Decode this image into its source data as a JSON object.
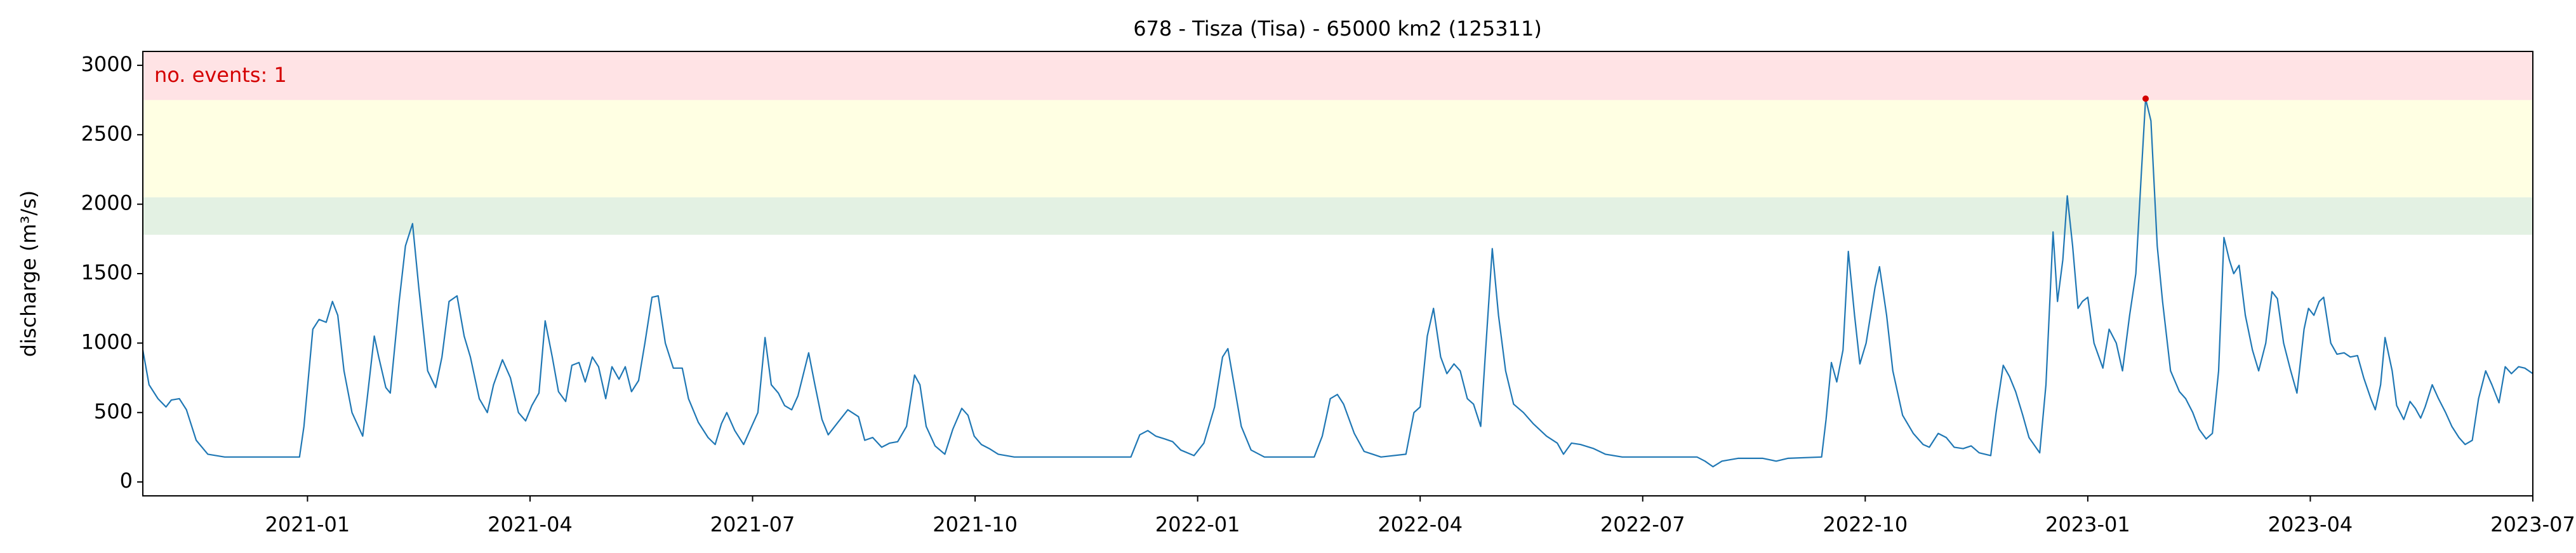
{
  "chart_data": {
    "type": "line",
    "title": "678 - Tisza (Tisa) - 65000 km2 (125311)",
    "y_label": "discharge (m³/s)",
    "annotation": "no. events: 1",
    "annotation_color": "#d40000",
    "color": "#1f77b4",
    "xlim": [
      2020.815,
      2023.5
    ],
    "ylim": [
      -100,
      3100
    ],
    "xticks": [
      {
        "value": 2021.0,
        "label": "2021-01"
      },
      {
        "value": 2021.25,
        "label": "2021-04"
      },
      {
        "value": 2021.5,
        "label": "2021-07"
      },
      {
        "value": 2021.75,
        "label": "2021-10"
      },
      {
        "value": 2022.0,
        "label": "2022-01"
      },
      {
        "value": 2022.25,
        "label": "2022-04"
      },
      {
        "value": 2022.5,
        "label": "2022-07"
      },
      {
        "value": 2022.75,
        "label": "2022-10"
      },
      {
        "value": 2023.0,
        "label": "2023-01"
      },
      {
        "value": 2023.25,
        "label": "2023-04"
      },
      {
        "value": 2023.5,
        "label": "2023-07"
      }
    ],
    "yticks": [
      0,
      500,
      1000,
      1500,
      2000,
      2500,
      3000
    ],
    "bands": [
      {
        "from": 1780,
        "to": 2050,
        "color": "#e3f1e3"
      },
      {
        "from": 2050,
        "to": 2750,
        "color": "#ffffe3"
      },
      {
        "from": 2750,
        "color": "#ffe3e5"
      }
    ],
    "events": {
      "x": [
        2023.065
      ],
      "values": [
        2760
      ],
      "color": "#d40000"
    },
    "x": [
      2020.815,
      2020.822,
      2020.832,
      2020.841,
      2020.847,
      2020.856,
      2020.864,
      2020.875,
      2020.888,
      2020.907,
      2020.991,
      2020.996,
      2021.006,
      2021.013,
      2021.021,
      2021.028,
      2021.034,
      2021.041,
      2021.05,
      2021.062,
      2021.067,
      2021.075,
      2021.08,
      2021.088,
      2021.093,
      2021.103,
      2021.11,
      2021.118,
      2021.125,
      2021.135,
      2021.144,
      2021.151,
      2021.159,
      2021.168,
      2021.176,
      2021.183,
      2021.193,
      2021.202,
      2021.209,
      2021.219,
      2021.228,
      2021.237,
      2021.245,
      2021.252,
      2021.26,
      2021.267,
      2021.275,
      2021.282,
      2021.29,
      2021.297,
      2021.305,
      2021.312,
      2021.32,
      2021.327,
      2021.335,
      2021.342,
      2021.35,
      2021.357,
      2021.364,
      2021.372,
      2021.379,
      2021.387,
      2021.394,
      2021.402,
      2021.411,
      2021.421,
      2021.428,
      2021.439,
      2021.45,
      2021.458,
      2021.465,
      2021.471,
      2021.48,
      2021.49,
      2021.499,
      2021.506,
      2021.514,
      2021.521,
      2021.529,
      2021.536,
      2021.544,
      2021.551,
      2021.563,
      2021.57,
      2021.578,
      2021.585,
      2021.596,
      2021.607,
      2021.619,
      2021.626,
      2021.635,
      2021.645,
      2021.654,
      2021.663,
      2021.673,
      2021.682,
      2021.688,
      2021.695,
      2021.705,
      2021.716,
      2021.725,
      2021.735,
      2021.742,
      2021.749,
      2021.757,
      2021.766,
      2021.776,
      2021.794,
      2021.925,
      2021.935,
      2021.944,
      2021.953,
      2021.963,
      2021.972,
      2021.981,
      2021.996,
      2022.007,
      2022.019,
      2022.028,
      2022.034,
      2022.041,
      2022.049,
      2022.06,
      2022.075,
      2022.131,
      2022.14,
      2022.149,
      2022.157,
      2022.164,
      2022.176,
      2022.187,
      2022.206,
      2022.234,
      2022.243,
      2022.25,
      2022.258,
      2022.265,
      2022.273,
      2022.28,
      2022.288,
      2022.295,
      2022.303,
      2022.31,
      2022.318,
      2022.323,
      2022.331,
      2022.338,
      2022.346,
      2022.355,
      2022.366,
      2022.377,
      2022.392,
      2022.404,
      2022.411,
      2022.42,
      2022.43,
      2022.445,
      2022.458,
      2022.477,
      2022.561,
      2022.57,
      2022.579,
      2022.589,
      2022.607,
      2022.635,
      2022.65,
      2022.663,
      2022.701,
      2022.706,
      2022.712,
      2022.718,
      2022.725,
      2022.731,
      2022.738,
      2022.744,
      2022.751,
      2022.761,
      2022.766,
      2022.774,
      2022.781,
      2022.792,
      2022.804,
      2022.815,
      2022.822,
      2022.832,
      2022.841,
      2022.85,
      2022.86,
      2022.869,
      2022.878,
      2022.891,
      2022.897,
      2022.905,
      2022.912,
      2022.919,
      2022.927,
      2022.934,
      2022.946,
      2022.953,
      2022.961,
      2022.966,
      2022.972,
      2022.977,
      2022.983,
      2022.989,
      2022.994,
      2023.0,
      2023.007,
      2023.017,
      2023.024,
      2023.032,
      2023.039,
      2023.047,
      2023.054,
      2023.06,
      2023.065,
      2023.071,
      2023.078,
      2023.084,
      2023.093,
      2023.103,
      2023.11,
      2023.118,
      2023.125,
      2023.133,
      2023.14,
      2023.147,
      2023.153,
      2023.159,
      2023.164,
      2023.17,
      2023.177,
      2023.185,
      2023.192,
      2023.2,
      2023.207,
      2023.213,
      2023.22,
      2023.228,
      2023.235,
      2023.243,
      2023.248,
      2023.254,
      2023.26,
      2023.265,
      2023.273,
      2023.28,
      2023.288,
      2023.295,
      2023.303,
      2023.31,
      2023.318,
      2023.323,
      2023.329,
      2023.334,
      2023.342,
      2023.347,
      2023.355,
      2023.362,
      2023.368,
      2023.374,
      2023.379,
      2023.387,
      2023.394,
      2023.402,
      2023.409,
      2023.417,
      2023.424,
      2023.432,
      2023.439,
      2023.447,
      2023.454,
      2023.462,
      2023.469,
      2023.476,
      2023.484,
      2023.491,
      2023.5
    ],
    "values": [
      950,
      700,
      600,
      540,
      590,
      600,
      520,
      300,
      200,
      180,
      180,
      400,
      1100,
      1170,
      1150,
      1300,
      1200,
      800,
      500,
      330,
      600,
      1050,
      900,
      680,
      640,
      1300,
      1700,
      1860,
      1400,
      800,
      680,
      900,
      1300,
      1340,
      1050,
      900,
      600,
      500,
      700,
      880,
      750,
      500,
      440,
      550,
      640,
      1160,
      900,
      650,
      580,
      840,
      860,
      720,
      900,
      830,
      600,
      830,
      740,
      830,
      650,
      730,
      1000,
      1330,
      1340,
      1000,
      820,
      820,
      600,
      430,
      320,
      270,
      420,
      500,
      370,
      270,
      400,
      500,
      1040,
      700,
      640,
      550,
      520,
      620,
      930,
      700,
      450,
      340,
      430,
      520,
      470,
      300,
      320,
      250,
      280,
      290,
      400,
      770,
      700,
      400,
      260,
      200,
      380,
      530,
      480,
      330,
      270,
      240,
      200,
      180,
      180,
      340,
      370,
      330,
      310,
      290,
      230,
      190,
      280,
      540,
      900,
      960,
      700,
      400,
      230,
      180,
      180,
      330,
      600,
      630,
      560,
      350,
      220,
      180,
      200,
      500,
      540,
      1050,
      1250,
      900,
      780,
      850,
      800,
      600,
      560,
      400,
      900,
      1680,
      1200,
      800,
      560,
      500,
      420,
      330,
      280,
      200,
      280,
      270,
      240,
      200,
      180,
      180,
      150,
      110,
      150,
      170,
      170,
      150,
      170,
      180,
      450,
      860,
      720,
      950,
      1660,
      1200,
      850,
      1000,
      1400,
      1550,
      1200,
      800,
      480,
      350,
      270,
      250,
      350,
      320,
      250,
      240,
      260,
      210,
      190,
      500,
      840,
      760,
      650,
      480,
      320,
      210,
      700,
      1800,
      1300,
      1600,
      2060,
      1700,
      1250,
      1300,
      1330,
      1000,
      820,
      1100,
      1000,
      800,
      1200,
      1500,
      2200,
      2760,
      2600,
      1700,
      1300,
      800,
      650,
      600,
      500,
      380,
      310,
      350,
      800,
      1760,
      1600,
      1500,
      1560,
      1200,
      950,
      800,
      1000,
      1370,
      1320,
      1000,
      800,
      640,
      1100,
      1250,
      1200,
      1300,
      1330,
      1000,
      920,
      930,
      900,
      910,
      750,
      600,
      520,
      700,
      1040,
      800,
      550,
      450,
      580,
      530,
      460,
      540,
      700,
      600,
      500,
      400,
      320,
      270,
      300,
      600,
      800,
      700,
      570,
      830,
      780,
      830,
      820,
      780
    ]
  }
}
